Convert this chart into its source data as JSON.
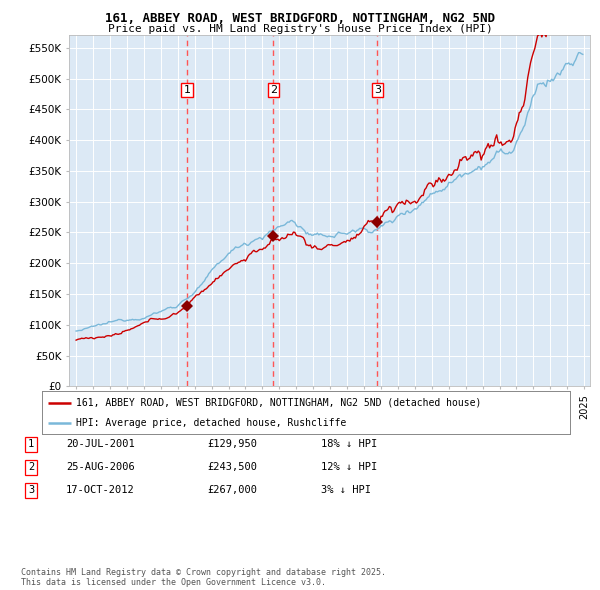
{
  "title1": "161, ABBEY ROAD, WEST BRIDGFORD, NOTTINGHAM, NG2 5ND",
  "title2": "Price paid vs. HM Land Registry's House Price Index (HPI)",
  "bg_color": "#dce9f5",
  "hpi_color": "#7ab8d9",
  "price_color": "#cc0000",
  "marker_color": "#8b0000",
  "vline_color": "#ff5555",
  "legend_label_red": "161, ABBEY ROAD, WEST BRIDGFORD, NOTTINGHAM, NG2 5ND (detached house)",
  "legend_label_blue": "HPI: Average price, detached house, Rushcliffe",
  "sale_dates": [
    "2001-07-20",
    "2006-08-25",
    "2012-10-17"
  ],
  "sale_prices": [
    129950,
    243500,
    267000
  ],
  "sale_labels": [
    "1",
    "2",
    "3"
  ],
  "note_rows": [
    [
      "1",
      "20-JUL-2001",
      "£129,950",
      "18% ↓ HPI"
    ],
    [
      "2",
      "25-AUG-2006",
      "£243,500",
      "12% ↓ HPI"
    ],
    [
      "3",
      "17-OCT-2012",
      "£267,000",
      "3% ↓ HPI"
    ]
  ],
  "footer": "Contains HM Land Registry data © Crown copyright and database right 2025.\nThis data is licensed under the Open Government Licence v3.0.",
  "ylim": [
    0,
    570000
  ],
  "yticks": [
    0,
    50000,
    100000,
    150000,
    200000,
    250000,
    300000,
    350000,
    400000,
    450000,
    500000,
    550000
  ],
  "ytick_labels": [
    "£0",
    "£50K",
    "£100K",
    "£150K",
    "£200K",
    "£250K",
    "£300K",
    "£350K",
    "£400K",
    "£450K",
    "£500K",
    "£550K"
  ]
}
